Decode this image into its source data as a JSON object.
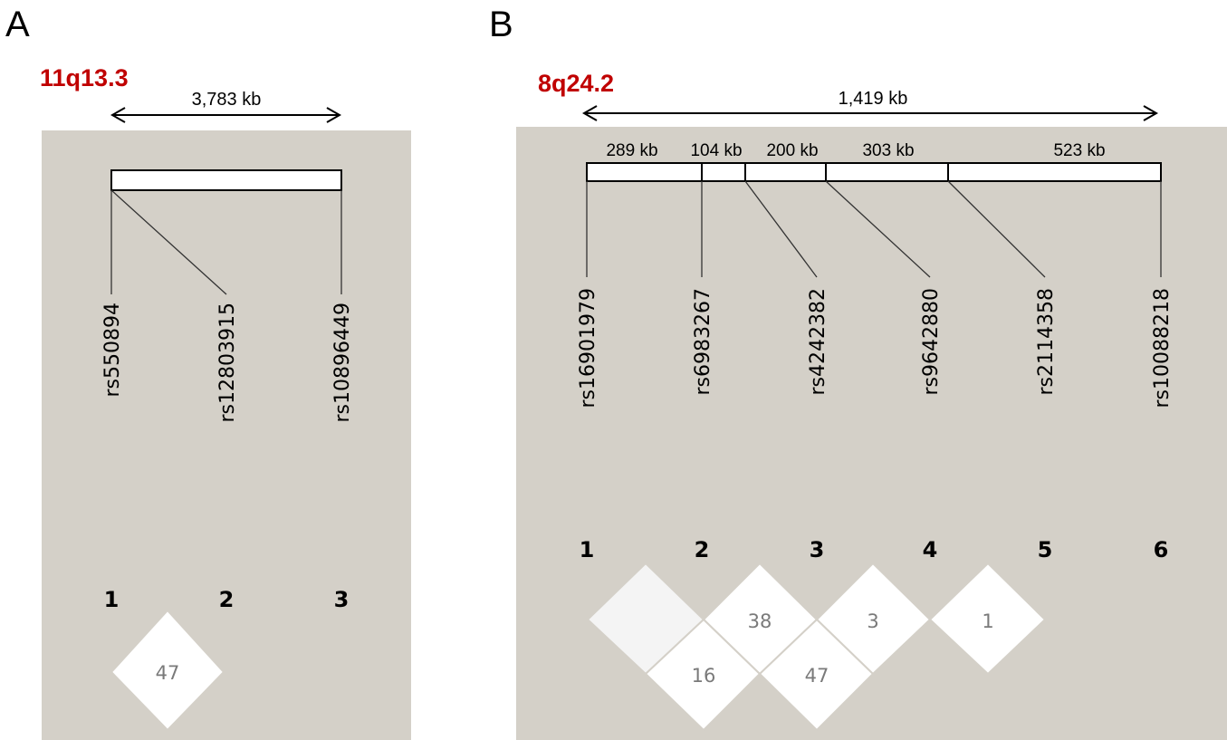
{
  "panels": [
    {
      "letter": "A",
      "region": "11q13.3",
      "span": "3,783 kb",
      "segments": [],
      "snps": [
        "rs550894",
        "rs12803915",
        "rs10896449"
      ],
      "indices": [
        "1",
        "2",
        "3"
      ],
      "ld": [
        {
          "i": 1,
          "j": 2,
          "value": "47"
        }
      ]
    },
    {
      "letter": "B",
      "region": "8q24.2",
      "span": "1,419 kb",
      "segments": [
        "289 kb",
        "104 kb",
        "200 kb",
        "303 kb",
        "523 kb"
      ],
      "snps": [
        "rs16901979",
        "rs6983267",
        "rs4242382",
        "rs9642880",
        "rs2114358",
        "rs10088218"
      ],
      "indices": [
        "1",
        "2",
        "3",
        "4",
        "5",
        "6"
      ],
      "ld": [
        {
          "i": 1,
          "j": 2,
          "value": ""
        },
        {
          "i": 2,
          "j": 3,
          "value": "38"
        },
        {
          "i": 3,
          "j": 4,
          "value": "3"
        },
        {
          "i": 4,
          "j": 5,
          "value": "1"
        },
        {
          "i": 1,
          "j": 3,
          "value": "16"
        },
        {
          "i": 2,
          "j": 4,
          "value": "47"
        }
      ]
    }
  ],
  "colors": {
    "background": "#d4d0c8",
    "cell": "#ffffff",
    "cell_empty": "#f4f4f4",
    "region_label": "#c00000"
  }
}
